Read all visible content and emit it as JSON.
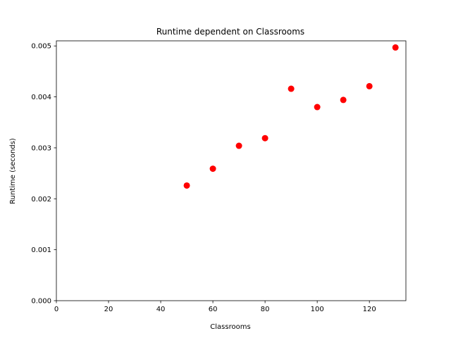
{
  "chart_data": {
    "type": "scatter",
    "title": "Runtime dependent on Classrooms",
    "xlabel": "Classrooms",
    "ylabel": "Runtime (seconds)",
    "xlim": [
      0,
      134
    ],
    "ylim": [
      0,
      0.0051
    ],
    "xticks": [
      0,
      20,
      40,
      60,
      80,
      100,
      120
    ],
    "xtick_labels": [
      "0",
      "20",
      "40",
      "60",
      "80",
      "100",
      "120"
    ],
    "yticks": [
      0,
      0.001,
      0.002,
      0.003,
      0.004,
      0.005
    ],
    "ytick_labels": [
      "0.000",
      "0.001",
      "0.002",
      "0.003",
      "0.004",
      "0.005"
    ],
    "grid": false,
    "legend": "none",
    "series": [
      {
        "color": "#ff0000",
        "marker": "circle",
        "x": [
          50,
          60,
          70,
          80,
          90,
          100,
          110,
          120,
          130
        ],
        "y": [
          0.00226,
          0.00259,
          0.00304,
          0.00319,
          0.00416,
          0.0038,
          0.00394,
          0.00421,
          0.00497
        ]
      }
    ]
  }
}
